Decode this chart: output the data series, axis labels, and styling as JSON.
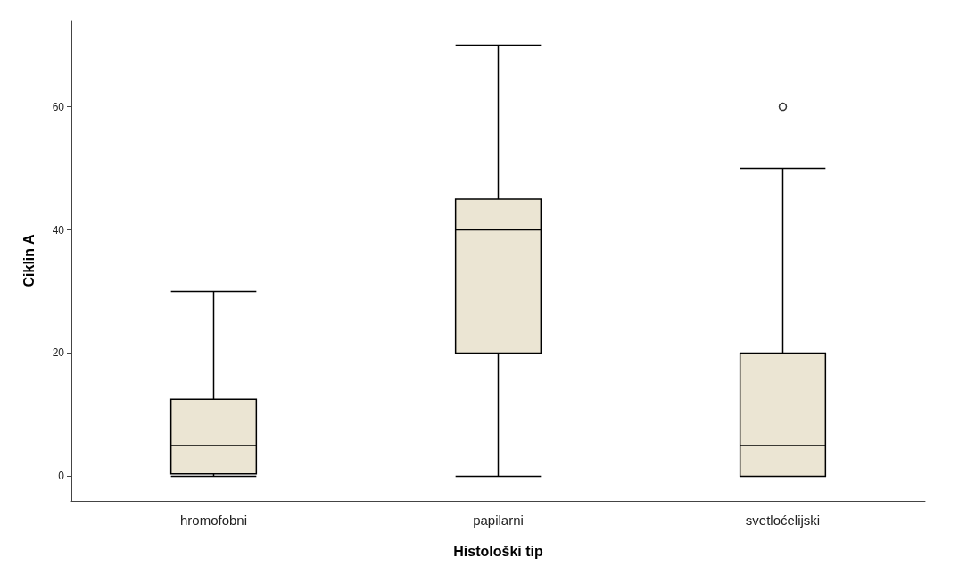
{
  "chart_data": {
    "type": "box",
    "xlabel": "Histološki tip",
    "ylabel": "Ciklin A",
    "categories": [
      "hromofobni",
      "papilarni",
      "svetloćelijski"
    ],
    "boxes": [
      {
        "low": 0,
        "q1": 0.4,
        "median": 5,
        "q3": 12.5,
        "high": 30
      },
      {
        "low": 0,
        "q1": 20,
        "median": 40,
        "q3": 45,
        "high": 70
      },
      {
        "low": 0,
        "q1": 0,
        "median": 5,
        "q3": 20,
        "high": 50,
        "outliers": [
          60
        ]
      }
    ],
    "color": "#ebe5d3",
    "ylim": [
      -4,
      74
    ],
    "yticks": [
      0,
      20,
      40,
      60
    ],
    "grid": false
  }
}
